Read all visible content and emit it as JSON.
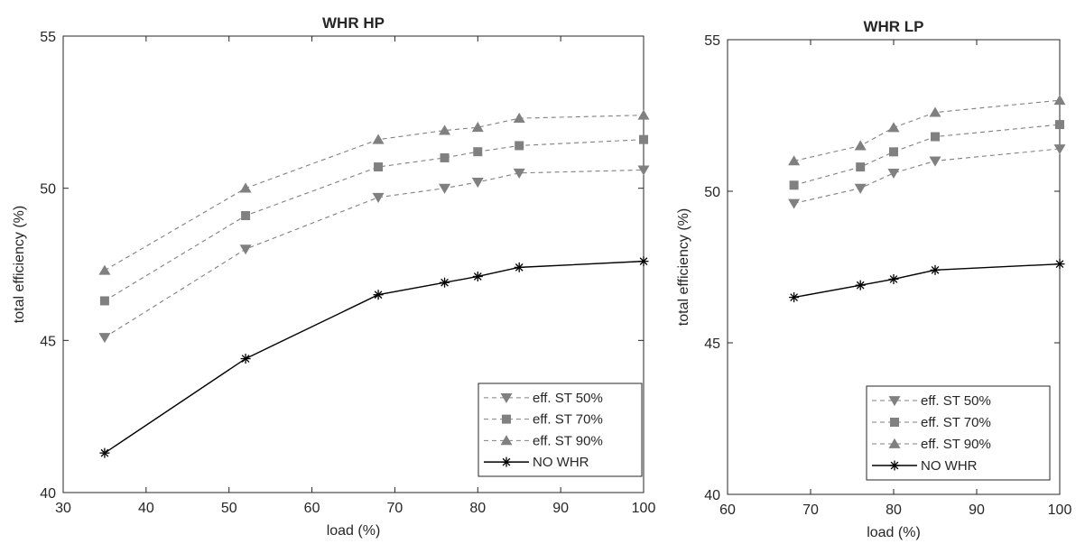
{
  "chart_data": [
    {
      "type": "line",
      "title": "WHR HP",
      "xlabel": "load (%)",
      "ylabel": "total efficiency (%)",
      "xlim": [
        30,
        100
      ],
      "ylim": [
        40,
        55
      ],
      "xticks": [
        "30",
        "40",
        "50",
        "60",
        "70",
        "80",
        "90",
        "100"
      ],
      "yticks": [
        "40",
        "45",
        "50",
        "55"
      ],
      "grid": false,
      "legend_position": "bottom-right",
      "x": [
        35,
        52,
        68,
        76,
        80,
        85,
        100
      ],
      "series": [
        {
          "name": "eff. ST 50%",
          "marker": "triangle-down",
          "style": "dashed",
          "color": "#808080",
          "values": [
            45.1,
            48.0,
            49.7,
            50.0,
            50.2,
            50.5,
            50.6
          ]
        },
        {
          "name": "eff. ST 70%",
          "marker": "square",
          "style": "dashed",
          "color": "#808080",
          "values": [
            46.3,
            49.1,
            50.7,
            51.0,
            51.2,
            51.4,
            51.6
          ]
        },
        {
          "name": "eff. ST 90%",
          "marker": "triangle-up",
          "style": "dashed",
          "color": "#808080",
          "values": [
            47.3,
            50.0,
            51.6,
            51.9,
            52.0,
            52.3,
            52.4
          ]
        },
        {
          "name": "NO WHR",
          "marker": "asterisk",
          "style": "solid",
          "color": "#000000",
          "values": [
            41.3,
            44.4,
            46.5,
            46.9,
            47.1,
            47.4,
            47.6
          ]
        }
      ]
    },
    {
      "type": "line",
      "title": "WHR LP",
      "xlabel": "load (%)",
      "ylabel": "total efficiency (%)",
      "xlim": [
        60,
        100
      ],
      "ylim": [
        40,
        55
      ],
      "xticks": [
        "60",
        "70",
        "80",
        "90",
        "100"
      ],
      "yticks": [
        "40",
        "45",
        "50",
        "55"
      ],
      "grid": false,
      "legend_position": "bottom-right",
      "x": [
        68,
        76,
        80,
        85,
        100
      ],
      "series": [
        {
          "name": "eff. ST 50%",
          "marker": "triangle-down",
          "style": "dashed",
          "color": "#808080",
          "values": [
            49.6,
            50.1,
            50.6,
            51.0,
            51.4
          ]
        },
        {
          "name": "eff. ST 70%",
          "marker": "square",
          "style": "dashed",
          "color": "#808080",
          "values": [
            50.2,
            50.8,
            51.3,
            51.8,
            52.2
          ]
        },
        {
          "name": "eff. ST 90%",
          "marker": "triangle-up",
          "style": "dashed",
          "color": "#808080",
          "values": [
            51.0,
            51.5,
            52.1,
            52.6,
            53.0
          ]
        },
        {
          "name": "NO WHR",
          "marker": "asterisk",
          "style": "solid",
          "color": "#000000",
          "values": [
            46.5,
            46.9,
            47.1,
            47.4,
            47.6
          ]
        }
      ]
    }
  ]
}
